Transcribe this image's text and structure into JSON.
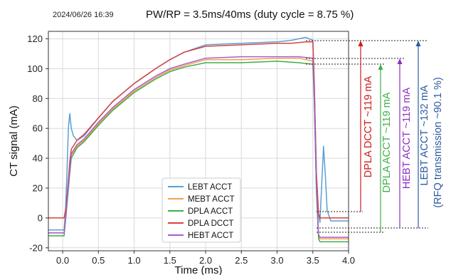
{
  "chart_data": {
    "type": "line",
    "timestamp": "2024/06/26 16:39",
    "title": "PW/RP = 3.5ms/40ms (duty cycle = 8.75 %)",
    "xlabel": "Time (ms)",
    "ylabel": "CT signal (mA)",
    "xlim": [
      -0.2,
      4.0
    ],
    "ylim": [
      -22,
      125
    ],
    "x_ticks": [
      "0.0",
      "0.5",
      "1.0",
      "1.5",
      "2.0",
      "2.5",
      "3.0",
      "3.5",
      "4.0"
    ],
    "y_ticks": [
      "-20",
      "0",
      "20",
      "40",
      "60",
      "80",
      "100",
      "120"
    ],
    "grid": true,
    "legend_position": "bottom-center",
    "series": [
      {
        "name": "LEBT ACCT",
        "color": "#5a9fd4",
        "points": [
          [
            -0.2,
            -8
          ],
          [
            0.02,
            -8
          ],
          [
            0.04,
            5
          ],
          [
            0.06,
            30
          ],
          [
            0.08,
            60
          ],
          [
            0.1,
            70
          ],
          [
            0.12,
            60
          ],
          [
            0.15,
            55
          ],
          [
            0.2,
            52
          ],
          [
            0.3,
            55
          ],
          [
            0.5,
            67
          ],
          [
            0.7,
            78
          ],
          [
            1.0,
            90
          ],
          [
            1.3,
            100
          ],
          [
            1.5,
            106
          ],
          [
            1.7,
            111
          ],
          [
            2.0,
            116
          ],
          [
            2.5,
            117
          ],
          [
            3.0,
            118
          ],
          [
            3.2,
            119
          ],
          [
            3.4,
            121
          ],
          [
            3.5,
            119
          ],
          [
            3.52,
            90
          ],
          [
            3.55,
            30
          ],
          [
            3.58,
            2
          ],
          [
            3.6,
            -3
          ],
          [
            3.62,
            18
          ],
          [
            3.65,
            48
          ],
          [
            3.68,
            25
          ],
          [
            3.7,
            5
          ],
          [
            3.75,
            -2
          ],
          [
            4.0,
            -2
          ]
        ]
      },
      {
        "name": "MEBT ACCT",
        "color": "#f5a04a",
        "points": [
          [
            -0.2,
            -10
          ],
          [
            0.02,
            -10
          ],
          [
            0.05,
            5
          ],
          [
            0.1,
            32
          ],
          [
            0.12,
            42
          ],
          [
            0.2,
            48
          ],
          [
            0.3,
            52
          ],
          [
            0.5,
            63
          ],
          [
            0.7,
            73
          ],
          [
            1.0,
            85
          ],
          [
            1.3,
            94
          ],
          [
            1.5,
            99
          ],
          [
            1.7,
            102
          ],
          [
            2.0,
            106
          ],
          [
            2.5,
            106
          ],
          [
            3.0,
            107
          ],
          [
            3.3,
            107
          ],
          [
            3.5,
            105
          ],
          [
            3.52,
            80
          ],
          [
            3.55,
            20
          ],
          [
            3.58,
            -12
          ],
          [
            3.6,
            -14
          ],
          [
            4.0,
            -14
          ]
        ]
      },
      {
        "name": "DPLA ACCT",
        "color": "#3fae49",
        "points": [
          [
            -0.2,
            -12
          ],
          [
            0.02,
            -12
          ],
          [
            0.05,
            3
          ],
          [
            0.1,
            30
          ],
          [
            0.12,
            40
          ],
          [
            0.2,
            47
          ],
          [
            0.3,
            51
          ],
          [
            0.5,
            62
          ],
          [
            0.7,
            72
          ],
          [
            1.0,
            84
          ],
          [
            1.3,
            93
          ],
          [
            1.5,
            98
          ],
          [
            1.7,
            101
          ],
          [
            2.0,
            104
          ],
          [
            2.5,
            104
          ],
          [
            3.0,
            105
          ],
          [
            3.3,
            104
          ],
          [
            3.5,
            103
          ],
          [
            3.52,
            78
          ],
          [
            3.55,
            18
          ],
          [
            3.58,
            -14
          ],
          [
            3.6,
            -16
          ],
          [
            4.0,
            -16
          ]
        ]
      },
      {
        "name": "DPLA DCCT",
        "color": "#d9423f",
        "points": [
          [
            -0.2,
            0
          ],
          [
            0.02,
            0
          ],
          [
            0.05,
            8
          ],
          [
            0.1,
            38
          ],
          [
            0.12,
            46
          ],
          [
            0.2,
            52
          ],
          [
            0.3,
            56
          ],
          [
            0.5,
            67
          ],
          [
            0.7,
            78
          ],
          [
            1.0,
            90
          ],
          [
            1.3,
            100
          ],
          [
            1.5,
            106
          ],
          [
            1.7,
            111
          ],
          [
            2.0,
            115
          ],
          [
            2.5,
            116
          ],
          [
            3.0,
            117
          ],
          [
            3.2,
            117
          ],
          [
            3.4,
            118
          ],
          [
            3.5,
            118
          ],
          [
            3.52,
            90
          ],
          [
            3.55,
            30
          ],
          [
            3.58,
            3
          ],
          [
            3.6,
            0
          ],
          [
            4.0,
            0
          ]
        ]
      },
      {
        "name": "HEBT ACCT",
        "color": "#a55fd0",
        "points": [
          [
            -0.2,
            -10
          ],
          [
            0.02,
            -10
          ],
          [
            0.05,
            5
          ],
          [
            0.1,
            33
          ],
          [
            0.12,
            43
          ],
          [
            0.2,
            49
          ],
          [
            0.3,
            53
          ],
          [
            0.5,
            64
          ],
          [
            0.7,
            74
          ],
          [
            1.0,
            86
          ],
          [
            1.3,
            95
          ],
          [
            1.5,
            100
          ],
          [
            1.7,
            103
          ],
          [
            2.0,
            107
          ],
          [
            2.5,
            108
          ],
          [
            3.0,
            108
          ],
          [
            3.3,
            108
          ],
          [
            3.5,
            107
          ],
          [
            3.52,
            82
          ],
          [
            3.55,
            22
          ],
          [
            3.58,
            -11
          ],
          [
            3.6,
            -13
          ],
          [
            4.0,
            -13
          ]
        ]
      }
    ],
    "annotations": [
      {
        "text": "DPLA DCCT ~119 mA",
        "color": "#d11a1a"
      },
      {
        "text": "DPLA ACCT ~119 mA",
        "color": "#3fae49"
      },
      {
        "text": "HEBT ACCT ~119 mA",
        "color": "#8d2fc5"
      },
      {
        "text": "LEBT ACCT ~132 mA",
        "color": "#2c5aa0"
      },
      {
        "text": "(RFQ transmission ~90.1 %)",
        "color": "#2c5aa0"
      }
    ]
  }
}
